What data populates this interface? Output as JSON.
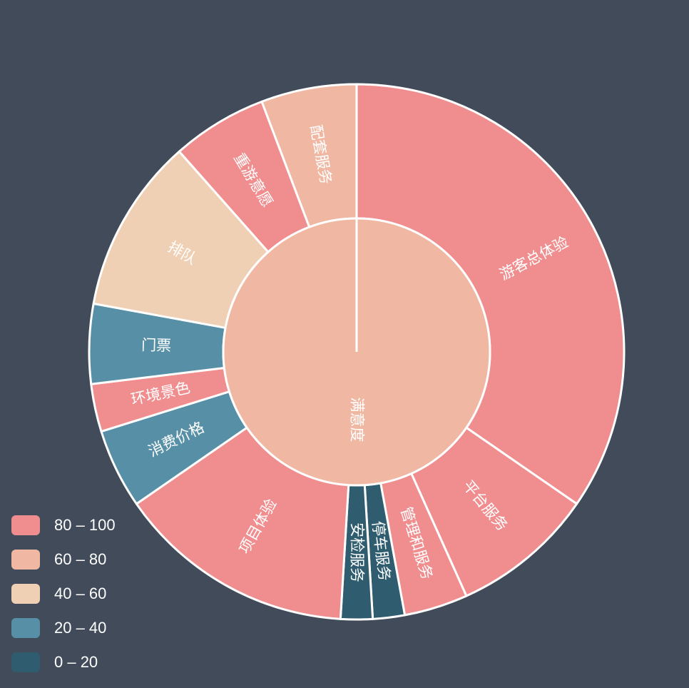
{
  "chart_data": {
    "type": "sunburst",
    "start_angle_deg": 90,
    "clockwise": true,
    "root": {
      "name": "满意度",
      "value": 73
    },
    "segments": [
      {
        "name": "游客总体验",
        "value": 36,
        "score": 90
      },
      {
        "name": "平台服务",
        "value": 9,
        "score": 88
      },
      {
        "name": "管理和服务",
        "value": 4,
        "score": 85
      },
      {
        "name": "停车服务",
        "value": 2,
        "score": 10
      },
      {
        "name": "安检服务",
        "value": 2,
        "score": 10
      },
      {
        "name": "项目体验",
        "value": 15,
        "score": 88
      },
      {
        "name": "消费价格",
        "value": 5,
        "score": 30
      },
      {
        "name": "环境景色",
        "value": 3,
        "score": 85
      },
      {
        "name": "门票",
        "value": 5,
        "score": 30
      },
      {
        "name": "排队",
        "value": 11,
        "score": 50
      },
      {
        "name": "重游意愿",
        "value": 6,
        "score": 85
      },
      {
        "name": "配套服务",
        "value": 6,
        "score": 70
      }
    ],
    "visual_map": {
      "placement": "bottom-left",
      "pieces": [
        {
          "label": "80 – 100",
          "min": 80,
          "max": 100,
          "color": "#f08e8f"
        },
        {
          "label": "60 – 80",
          "min": 60,
          "max": 80,
          "color": "#f0b8a3"
        },
        {
          "label": "40 – 60",
          "min": 40,
          "max": 60,
          "color": "#efd0b4"
        },
        {
          "label": "20 – 40",
          "min": 20,
          "max": 40,
          "color": "#5790a6"
        },
        {
          "label": "0 – 20",
          "min": 0,
          "max": 20,
          "color": "#2f5d6f"
        }
      ]
    }
  },
  "colors": {
    "background": "#424b5a",
    "border": "#ffffff",
    "label": "#ffffff"
  }
}
